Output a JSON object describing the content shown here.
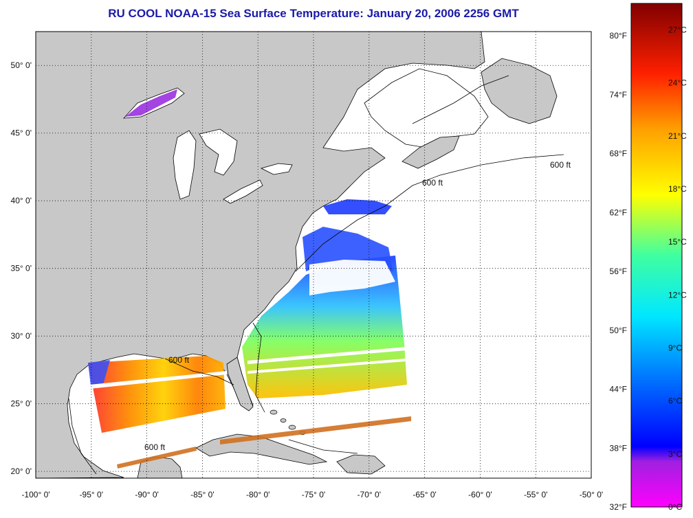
{
  "title": "RU COOL  NOAA-15  Sea Surface Temperature:  January 20, 2006 2256 GMT",
  "map": {
    "lon_labels": [
      "-100° 0'",
      "-95° 0'",
      "-90° 0'",
      "-85° 0'",
      "-80° 0'",
      "-75° 0'",
      "-70° 0'",
      "-65° 0'",
      "-60° 0'",
      "-55° 0'",
      "-50° 0'"
    ],
    "lat_labels": [
      "20° 0'",
      "25° 0'",
      "30° 0'",
      "35° 0'",
      "40° 0'",
      "45° 0'",
      "50° 0'"
    ],
    "lon_range": [
      -100,
      -50
    ],
    "lat_range": [
      19.5,
      52.5
    ],
    "isobath_label": "600 ft",
    "land_color": "#c8c8c8",
    "water_color": "#ffffff",
    "coast_color": "#000000"
  },
  "colorbar": {
    "fahrenheit_labels": [
      "80°F",
      "74°F",
      "68°F",
      "62°F",
      "56°F",
      "50°F",
      "44°F",
      "38°F",
      "32°F"
    ],
    "celsius_labels": [
      "27°C",
      "24°C",
      "21°C",
      "18°C",
      "15°C",
      "12°C",
      "9°C",
      "6°C",
      "3°C",
      "0°C"
    ],
    "celsius_range": [
      0,
      28.5
    ],
    "stops": [
      "#ff00ff",
      "#7a29d8",
      "#0000ff",
      "#00b0ff",
      "#00ffff",
      "#60ff60",
      "#ffff00",
      "#ff8c00",
      "#ff0000",
      "#8b0000"
    ]
  }
}
